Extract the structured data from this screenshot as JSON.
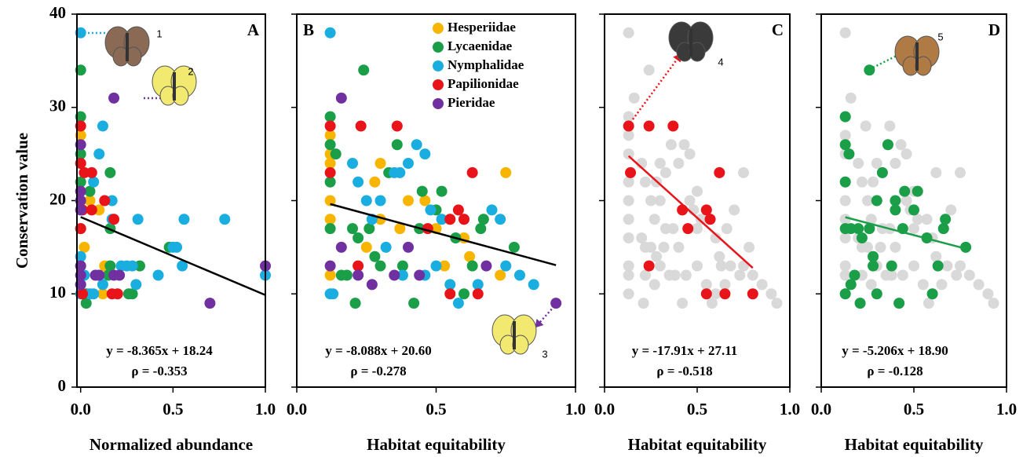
{
  "chart_data": [
    {
      "type": "scatter",
      "panel_label": "A",
      "xlabel": "Normalized abundance",
      "ylabel": "Conservation value",
      "xlim": [
        -0.02,
        1.0
      ],
      "ylim": [
        0,
        40
      ],
      "xticks": [
        {
          "value": 0,
          "label": "0.0"
        },
        {
          "value": 0.5,
          "label": "0.5"
        },
        {
          "value": 1,
          "label": "1.0"
        }
      ],
      "yticks": [
        0,
        10,
        20,
        30,
        40
      ],
      "series": [
        {
          "name": "Hesperiidae",
          "color": "#f7b500",
          "x": [
            0,
            0,
            0,
            0.05,
            0.02,
            0.13,
            0,
            0.12,
            0.1
          ],
          "values": [
            27,
            24,
            20,
            20,
            15,
            13,
            13,
            10,
            19
          ]
        },
        {
          "name": "Lycaenidae",
          "color": "#1a9e48",
          "x": [
            0,
            0,
            0,
            0.05,
            0.16,
            0.16,
            0.03,
            0.03,
            0.16,
            0.32,
            0.28,
            0.26,
            0.48,
            0.15,
            0,
            0
          ],
          "values": [
            34,
            29,
            25,
            21,
            23,
            17,
            9,
            10,
            13,
            13,
            10,
            10,
            15,
            12,
            17,
            22
          ]
        },
        {
          "name": "Nymphalidae",
          "color": "#1aaee0",
          "x": [
            0,
            0.12,
            0.1,
            0.07,
            0.17,
            0.17,
            0.31,
            0.56,
            0.78,
            0.52,
            0.5,
            0.55,
            1.0,
            0.42,
            0.25,
            0.28,
            0.22,
            0.3,
            0.12,
            0.05,
            0.07,
            0.02,
            0,
            0,
            0.1,
            0
          ],
          "values": [
            38,
            28,
            25,
            22,
            20,
            18,
            18,
            18,
            18,
            15,
            15,
            13,
            12,
            12,
            13,
            13,
            13,
            11,
            11,
            10,
            10,
            12,
            11,
            14,
            12,
            10
          ]
        },
        {
          "name": "Papilionidae",
          "color": "#e8141a",
          "x": [
            0,
            0,
            0.06,
            0.02,
            0.01,
            0.06,
            0.13,
            0.18,
            0.17,
            0.2,
            0,
            0.01
          ],
          "values": [
            28,
            24,
            23,
            23,
            19,
            19,
            20,
            18,
            10,
            10,
            17,
            10
          ]
        },
        {
          "name": "Pieridae",
          "color": "#7030a0",
          "x": [
            0.18,
            0,
            0,
            0,
            0,
            0,
            0,
            0.08,
            0.1,
            0.18,
            0.21,
            0.7,
            1.0,
            0
          ],
          "values": [
            31,
            26,
            21,
            20,
            19,
            13,
            12,
            12,
            12,
            12,
            12,
            9,
            13,
            11
          ]
        }
      ],
      "trendline": {
        "color": "#000000",
        "x": [
          0,
          1.0
        ],
        "values": [
          18.24,
          9.875
        ]
      },
      "annotations": [
        "y = -8.365x + 18.24",
        "ρ = -0.353"
      ],
      "image_labels": [
        "1",
        "2"
      ]
    },
    {
      "type": "scatter",
      "panel_label": "B",
      "xlabel": "Habitat equitability",
      "xlim": [
        0,
        1.0
      ],
      "ylim": [
        0,
        40
      ],
      "xticks": [
        {
          "value": 0,
          "label": "0.0"
        },
        {
          "value": 0.5,
          "label": "0.5"
        },
        {
          "value": 1,
          "label": "1.0"
        }
      ],
      "yticks": [
        0,
        10,
        20,
        30,
        40
      ],
      "legend": "upper right",
      "series": [
        {
          "name": "Hesperiidae",
          "color": "#f7b500",
          "x": [
            0.12,
            0.12,
            0.12,
            0.12,
            0.12,
            0.12,
            0.28,
            0.3,
            0.3,
            0.25,
            0.37,
            0.46,
            0.5,
            0.55,
            0.6,
            0.62,
            0.75,
            0.73,
            0.53,
            0.4
          ],
          "values": [
            27,
            25,
            24,
            20,
            18,
            12,
            22,
            24,
            18,
            15,
            17,
            20,
            17,
            18,
            16,
            14,
            23,
            12,
            13,
            20
          ]
        },
        {
          "name": "Lycaenidae",
          "color": "#1a9e48",
          "x": [
            0.12,
            0.12,
            0.12,
            0.12,
            0.14,
            0.24,
            0.2,
            0.22,
            0.26,
            0.28,
            0.3,
            0.21,
            0.33,
            0.36,
            0.38,
            0.42,
            0.44,
            0.45,
            0.5,
            0.52,
            0.57,
            0.6,
            0.63,
            0.66,
            0.67,
            0.78,
            0.16,
            0.18
          ],
          "values": [
            29,
            26,
            22,
            17,
            25,
            34,
            17,
            16,
            17,
            14,
            13,
            9,
            23,
            26,
            13,
            9,
            17,
            21,
            19,
            21,
            16,
            10,
            13,
            17,
            18,
            15,
            12,
            12
          ]
        },
        {
          "name": "Nymphalidae",
          "color": "#1aaee0",
          "x": [
            0.12,
            0.12,
            0.13,
            0.2,
            0.22,
            0.25,
            0.27,
            0.3,
            0.32,
            0.35,
            0.37,
            0.4,
            0.43,
            0.46,
            0.48,
            0.5,
            0.52,
            0.55,
            0.58,
            0.6,
            0.65,
            0.7,
            0.73,
            0.75,
            0.8,
            0.85,
            0.38,
            0.46
          ],
          "values": [
            38,
            10,
            10,
            24,
            22,
            20,
            18,
            20,
            15,
            23,
            23,
            24,
            26,
            25,
            19,
            13,
            18,
            11,
            9,
            18,
            11,
            19,
            18,
            13,
            12,
            11,
            12,
            12
          ]
        },
        {
          "name": "Papilionidae",
          "color": "#e8141a",
          "x": [
            0.12,
            0.12,
            0.22,
            0.23,
            0.36,
            0.47,
            0.55,
            0.58,
            0.6,
            0.63,
            0.65,
            0.55
          ],
          "values": [
            28,
            23,
            13,
            28,
            28,
            17,
            18,
            19,
            18,
            23,
            10,
            10
          ]
        },
        {
          "name": "Pieridae",
          "color": "#7030a0",
          "x": [
            0.16,
            0.16,
            0.12,
            0.22,
            0.27,
            0.35,
            0.4,
            0.44,
            0.68,
            0.93
          ],
          "values": [
            31,
            15,
            13,
            12,
            11,
            12,
            15,
            12,
            13,
            9
          ]
        }
      ],
      "trendline": {
        "color": "#000000",
        "x": [
          0.12,
          0.93
        ],
        "values": [
          19.63,
          13.08
        ]
      },
      "annotations": [
        "y = -8.088x + 20.60",
        "ρ = -0.278"
      ],
      "image_labels": [
        "3"
      ]
    },
    {
      "type": "scatter",
      "panel_label": "C",
      "xlabel": "Habitat equitability",
      "xlim": [
        0,
        1.0
      ],
      "ylim": [
        0,
        40
      ],
      "xticks": [
        {
          "value": 0,
          "label": "0.0"
        },
        {
          "value": 0.5,
          "label": "0.5"
        },
        {
          "value": 1,
          "label": "1.0"
        }
      ],
      "yticks": [
        0,
        10,
        20,
        30,
        40
      ],
      "series": [
        {
          "color": "#d9d9d9",
          "x": [
            0.13,
            0.24,
            0.16,
            0.13,
            0.13,
            0.13,
            0.13,
            0.13,
            0.13,
            0.13,
            0.13,
            0.13,
            0.13,
            0.2,
            0.22,
            0.28,
            0.3,
            0.36,
            0.43,
            0.46,
            0.33,
            0.4,
            0.25,
            0.3,
            0.46,
            0.5,
            0.7,
            0.75,
            0.27,
            0.33,
            0.37,
            0.5,
            0.6,
            0.66,
            0.78,
            0.2,
            0.22,
            0.25,
            0.32,
            0.4,
            0.28,
            0.3,
            0.5,
            0.62,
            0.68,
            0.75,
            0.38,
            0.44,
            0.8,
            0.22,
            0.35,
            0.27,
            0.55,
            0.65,
            0.85,
            0.6,
            0.73,
            0.21,
            0.42,
            0.58,
            0.93,
            0.9,
            0.57,
            0.63,
            0.52,
            0.48
          ],
          "values": [
            38,
            34,
            31,
            29,
            27,
            25,
            22,
            20,
            18,
            16,
            13,
            12,
            10,
            24,
            22,
            22,
            24,
            26,
            26,
            25,
            23,
            24,
            20,
            20,
            20,
            21,
            19,
            23,
            18,
            17,
            17,
            17,
            16,
            17,
            15,
            16,
            15,
            15,
            15,
            15,
            14,
            13,
            13,
            14,
            13,
            13,
            12,
            12,
            12,
            12,
            12,
            11,
            11,
            11,
            11,
            10,
            12,
            9,
            9,
            9,
            9,
            10,
            18,
            13,
            18,
            19
          ]
        },
        {
          "name": "Papilionidae",
          "color": "#e8141a",
          "x": [
            0.13,
            0.24,
            0.37,
            0.14,
            0.62,
            0.42,
            0.55,
            0.57,
            0.45,
            0.24,
            0.55,
            0.65,
            0.8
          ],
          "values": [
            28,
            28,
            28,
            23,
            23,
            19,
            19,
            18,
            17,
            13,
            10,
            10,
            10
          ]
        }
      ],
      "trendline": {
        "color": "#e8141a",
        "x": [
          0.13,
          0.8
        ],
        "values": [
          24.78,
          12.78
        ]
      },
      "annotations": [
        "y = -17.91x + 27.11",
        "ρ = -0.518"
      ],
      "image_labels": [
        "4"
      ]
    },
    {
      "type": "scatter",
      "panel_label": "D",
      "xlabel": "Habitat equitability",
      "xlim": [
        0,
        1.0
      ],
      "ylim": [
        0,
        40
      ],
      "xticks": [
        {
          "value": 0,
          "label": "0.0"
        },
        {
          "value": 0.5,
          "label": "0.5"
        },
        {
          "value": 1,
          "label": "1.0"
        }
      ],
      "yticks": [
        0,
        10,
        20,
        30,
        40
      ],
      "series": [
        {
          "color": "#d9d9d9",
          "x": [
            0.13,
            0.16,
            0.13,
            0.13,
            0.13,
            0.13,
            0.13,
            0.13,
            0.13,
            0.13,
            0.13,
            0.13,
            0.2,
            0.22,
            0.28,
            0.3,
            0.36,
            0.43,
            0.46,
            0.33,
            0.4,
            0.25,
            0.3,
            0.46,
            0.5,
            0.7,
            0.75,
            0.27,
            0.33,
            0.37,
            0.5,
            0.6,
            0.66,
            0.78,
            0.2,
            0.22,
            0.25,
            0.32,
            0.4,
            0.28,
            0.3,
            0.5,
            0.62,
            0.68,
            0.75,
            0.38,
            0.44,
            0.8,
            0.22,
            0.35,
            0.27,
            0.55,
            0.65,
            0.85,
            0.6,
            0.73,
            0.21,
            0.42,
            0.58,
            0.93,
            0.9,
            0.57,
            0.63,
            0.52,
            0.48,
            0.24,
            0.37,
            0.62
          ],
          "values": [
            38,
            31,
            29,
            27,
            25,
            22,
            20,
            18,
            16,
            13,
            12,
            10,
            24,
            22,
            22,
            24,
            26,
            26,
            25,
            23,
            24,
            20,
            20,
            20,
            21,
            19,
            23,
            18,
            17,
            17,
            17,
            16,
            17,
            15,
            16,
            15,
            15,
            15,
            15,
            14,
            13,
            13,
            14,
            13,
            13,
            12,
            12,
            12,
            12,
            12,
            11,
            11,
            11,
            11,
            10,
            12,
            9,
            9,
            9,
            9,
            10,
            18,
            13,
            18,
            19,
            28,
            28,
            23
          ]
        },
        {
          "name": "Lycaenidae",
          "color": "#1a9e48",
          "x": [
            0.26,
            0.13,
            0.13,
            0.15,
            0.13,
            0.13,
            0.16,
            0.2,
            0.22,
            0.26,
            0.28,
            0.28,
            0.18,
            0.16,
            0.13,
            0.21,
            0.3,
            0.33,
            0.36,
            0.38,
            0.42,
            0.44,
            0.45,
            0.4,
            0.5,
            0.52,
            0.57,
            0.6,
            0.63,
            0.66,
            0.67,
            0.78,
            0.3,
            0.4
          ],
          "values": [
            34,
            29,
            26,
            25,
            22,
            17,
            17,
            17,
            16,
            17,
            14,
            13,
            12,
            11,
            10,
            9,
            10,
            23,
            26,
            13,
            9,
            17,
            21,
            19,
            19,
            21,
            16,
            10,
            13,
            17,
            18,
            15,
            20,
            20
          ]
        }
      ],
      "trendline": {
        "color": "#1a9e48",
        "x": [
          0.13,
          0.8
        ],
        "values": [
          18.22,
          14.74
        ]
      },
      "annotations": [
        "y = -5.206x + 18.90",
        "ρ = -0.128"
      ],
      "image_labels": [
        "5"
      ]
    }
  ]
}
